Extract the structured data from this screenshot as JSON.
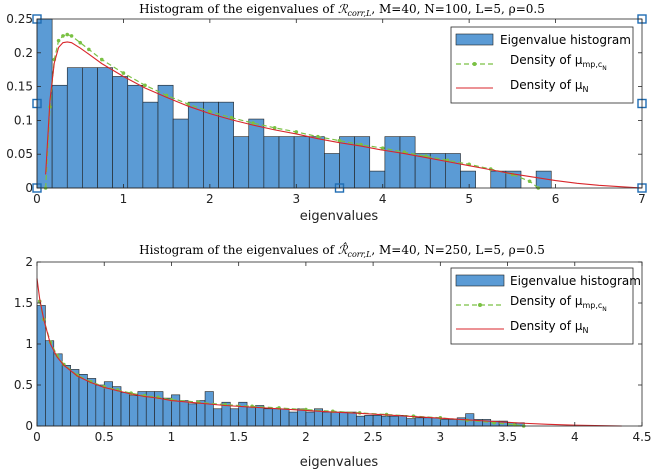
{
  "chart_data": [
    {
      "type": "bar",
      "title_prefix": "Histogram of the eigenvalues of ",
      "title_symbol": "ℛ",
      "title_symbol_sub": "corr,L",
      "title_suffix": ", M=40, N=100, L=5, ρ=0.5",
      "xlabel": "eigenvalues",
      "ylabel": "",
      "xlim": [
        0,
        7
      ],
      "ylim": [
        0,
        0.25
      ],
      "xticks": [
        "0",
        "1",
        "2",
        "3",
        "4",
        "5",
        "6",
        "7"
      ],
      "yticks": [
        "0",
        "0.05",
        "0.1",
        "0.15",
        "0.2",
        "0.25"
      ],
      "grid": false,
      "legend_position": "top-right",
      "legend": {
        "hist": "Eigenvalue histogram",
        "mp": "Density of μ",
        "mp_sub": "mp,c",
        "mp_subsub": "N",
        "n": "Density of μ",
        "n_sub": "N"
      },
      "bin_width": 0.175,
      "hist_values": [
        0.25,
        0.152,
        0.178,
        0.178,
        0.178,
        0.165,
        0.152,
        0.127,
        0.152,
        0.102,
        0.127,
        0.127,
        0.127,
        0.076,
        0.102,
        0.076,
        0.076,
        0.076,
        0.076,
        0.051,
        0.076,
        0.076,
        0.025,
        0.076,
        0.076,
        0.051,
        0.051,
        0.051,
        0.025,
        0.0,
        0.025,
        0.025,
        0.0,
        0.025,
        0.0
      ],
      "density_mp": [
        [
          0.1,
          0.0
        ],
        [
          0.15,
          0.12
        ],
        [
          0.2,
          0.19
        ],
        [
          0.25,
          0.218
        ],
        [
          0.3,
          0.225
        ],
        [
          0.35,
          0.227
        ],
        [
          0.4,
          0.225
        ],
        [
          0.5,
          0.215
        ],
        [
          0.6,
          0.205
        ],
        [
          0.75,
          0.19
        ],
        [
          1.0,
          0.17
        ],
        [
          1.25,
          0.152
        ],
        [
          1.5,
          0.137
        ],
        [
          1.75,
          0.124
        ],
        [
          2.0,
          0.113
        ],
        [
          2.25,
          0.104
        ],
        [
          2.5,
          0.096
        ],
        [
          2.75,
          0.089
        ],
        [
          3.0,
          0.083
        ],
        [
          3.25,
          0.076
        ],
        [
          3.5,
          0.07
        ],
        [
          3.75,
          0.064
        ],
        [
          4.0,
          0.059
        ],
        [
          4.25,
          0.053
        ],
        [
          4.5,
          0.047
        ],
        [
          4.75,
          0.041
        ],
        [
          5.0,
          0.035
        ],
        [
          5.25,
          0.028
        ],
        [
          5.5,
          0.02
        ],
        [
          5.7,
          0.01
        ],
        [
          5.8,
          0.0
        ]
      ],
      "density_n": [
        [
          0.1,
          0.02
        ],
        [
          0.15,
          0.13
        ],
        [
          0.2,
          0.185
        ],
        [
          0.25,
          0.208
        ],
        [
          0.3,
          0.215
        ],
        [
          0.35,
          0.216
        ],
        [
          0.4,
          0.215
        ],
        [
          0.5,
          0.207
        ],
        [
          0.6,
          0.198
        ],
        [
          0.75,
          0.184
        ],
        [
          1.0,
          0.165
        ],
        [
          1.25,
          0.148
        ],
        [
          1.5,
          0.134
        ],
        [
          1.75,
          0.121
        ],
        [
          2.0,
          0.11
        ],
        [
          2.25,
          0.101
        ],
        [
          2.5,
          0.093
        ],
        [
          2.75,
          0.086
        ],
        [
          3.0,
          0.08
        ],
        [
          3.25,
          0.073
        ],
        [
          3.5,
          0.067
        ],
        [
          3.75,
          0.062
        ],
        [
          4.0,
          0.056
        ],
        [
          4.25,
          0.051
        ],
        [
          4.5,
          0.045
        ],
        [
          4.75,
          0.039
        ],
        [
          5.0,
          0.033
        ],
        [
          5.25,
          0.027
        ],
        [
          5.5,
          0.021
        ],
        [
          5.75,
          0.016
        ],
        [
          6.0,
          0.011
        ],
        [
          6.25,
          0.007
        ],
        [
          6.5,
          0.004
        ],
        [
          6.75,
          0.002
        ],
        [
          7.0,
          0.0
        ]
      ],
      "markers": [
        [
          0,
          0.25
        ],
        [
          7,
          0.25
        ],
        [
          0,
          0.125
        ],
        [
          7,
          0.125
        ],
        [
          0,
          0
        ],
        [
          3.5,
          0
        ],
        [
          7,
          0
        ]
      ]
    },
    {
      "type": "bar",
      "title_prefix": "Histogram of the eigenvalues of ",
      "title_symbol": "ℛ̂",
      "title_symbol_sub": "corr,L",
      "title_suffix": ", M=40, N=250, L=5, ρ=0.5",
      "xlabel": "eigenvalues",
      "ylabel": "",
      "xlim": [
        0,
        4.5
      ],
      "ylim": [
        0,
        2
      ],
      "xticks": [
        "0",
        "0.5",
        "1",
        "1.5",
        "2",
        "2.5",
        "3",
        "3.5",
        "4",
        "4.5"
      ],
      "yticks": [
        "0",
        "0.5",
        "1",
        "1.5",
        "2"
      ],
      "grid": false,
      "legend_position": "top-right",
      "legend": {
        "hist": "Eigenvalue histogram",
        "mp": "Density of μ",
        "mp_sub": "mp,c",
        "mp_subsub": "N",
        "n": "Density of μ",
        "n_sub": "N"
      },
      "bin_width": 0.0625,
      "hist_values": [
        1.47,
        1.04,
        0.88,
        0.74,
        0.69,
        0.63,
        0.58,
        0.5,
        0.54,
        0.48,
        0.41,
        0.37,
        0.42,
        0.42,
        0.42,
        0.34,
        0.38,
        0.31,
        0.27,
        0.31,
        0.42,
        0.21,
        0.29,
        0.21,
        0.29,
        0.23,
        0.25,
        0.21,
        0.21,
        0.21,
        0.17,
        0.21,
        0.17,
        0.21,
        0.17,
        0.17,
        0.17,
        0.17,
        0.12,
        0.13,
        0.13,
        0.12,
        0.12,
        0.13,
        0.09,
        0.1,
        0.1,
        0.1,
        0.08,
        0.08,
        0.1,
        0.15,
        0.08,
        0.08,
        0.06,
        0.06,
        0.04,
        0.04
      ],
      "density_mp": [
        [
          0.02,
          1.52
        ],
        [
          0.05,
          1.3
        ],
        [
          0.1,
          1.02
        ],
        [
          0.15,
          0.86
        ],
        [
          0.2,
          0.75
        ],
        [
          0.3,
          0.62
        ],
        [
          0.4,
          0.54
        ],
        [
          0.5,
          0.48
        ],
        [
          0.6,
          0.44
        ],
        [
          0.7,
          0.4
        ],
        [
          0.8,
          0.37
        ],
        [
          0.9,
          0.35
        ],
        [
          1.0,
          0.32
        ],
        [
          1.2,
          0.29
        ],
        [
          1.4,
          0.26
        ],
        [
          1.6,
          0.24
        ],
        [
          1.8,
          0.22
        ],
        [
          2.0,
          0.2
        ],
        [
          2.2,
          0.18
        ],
        [
          2.4,
          0.16
        ],
        [
          2.6,
          0.14
        ],
        [
          2.8,
          0.12
        ],
        [
          3.0,
          0.1
        ],
        [
          3.2,
          0.07
        ],
        [
          3.4,
          0.04
        ],
        [
          3.55,
          0.015
        ],
        [
          3.62,
          0.0
        ]
      ],
      "density_n": [
        [
          0.0,
          1.8
        ],
        [
          0.02,
          1.55
        ],
        [
          0.05,
          1.3
        ],
        [
          0.1,
          1.0
        ],
        [
          0.15,
          0.84
        ],
        [
          0.2,
          0.74
        ],
        [
          0.3,
          0.61
        ],
        [
          0.4,
          0.53
        ],
        [
          0.5,
          0.47
        ],
        [
          0.6,
          0.43
        ],
        [
          0.7,
          0.39
        ],
        [
          0.8,
          0.36
        ],
        [
          0.9,
          0.34
        ],
        [
          1.0,
          0.31
        ],
        [
          1.2,
          0.28
        ],
        [
          1.4,
          0.25
        ],
        [
          1.6,
          0.23
        ],
        [
          1.8,
          0.21
        ],
        [
          2.0,
          0.19
        ],
        [
          2.2,
          0.17
        ],
        [
          2.4,
          0.155
        ],
        [
          2.6,
          0.135
        ],
        [
          2.8,
          0.115
        ],
        [
          3.0,
          0.095
        ],
        [
          3.2,
          0.075
        ],
        [
          3.4,
          0.055
        ],
        [
          3.6,
          0.035
        ],
        [
          3.8,
          0.02
        ],
        [
          4.0,
          0.01
        ],
        [
          4.2,
          0.004
        ],
        [
          4.35,
          0.0
        ]
      ],
      "markers": []
    }
  ],
  "colors": {
    "bar_fill": "#5b9bd5",
    "bar_edge": "#1f1f1f",
    "mp_line": "#7ac143",
    "n_line": "#d9262b",
    "marker_edge": "#1f6db3"
  }
}
